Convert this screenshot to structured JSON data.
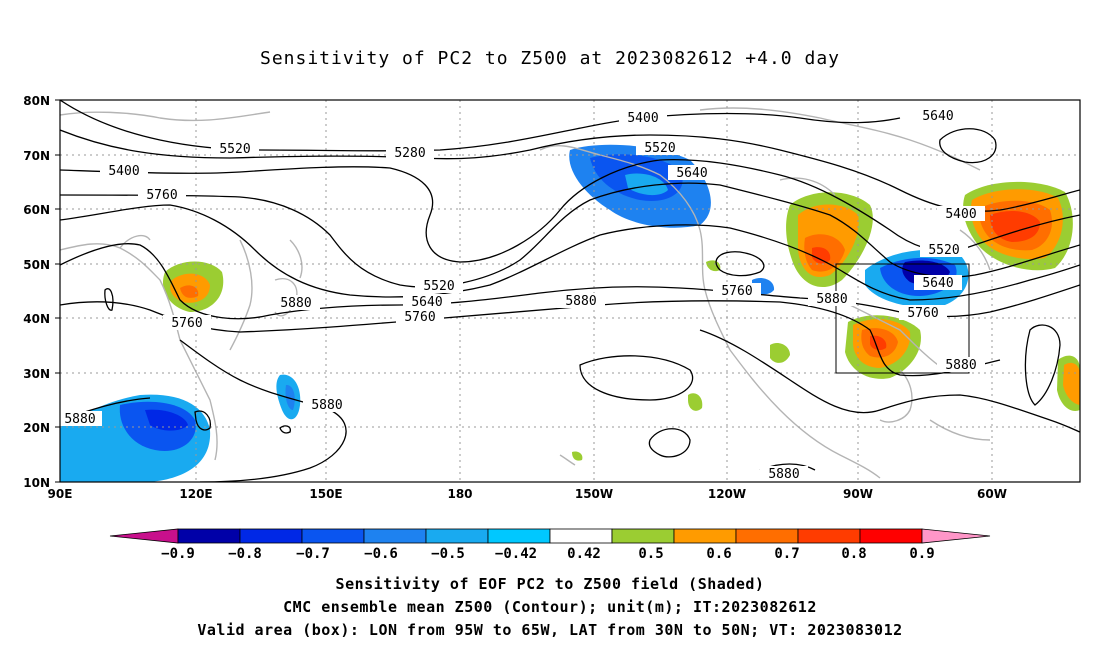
{
  "title": "Sensitivity of PC2 to Z500 at 2023082612 +4.0 day",
  "map": {
    "lat_labels": [
      "80N",
      "70N",
      "60N",
      "50N",
      "40N",
      "30N",
      "20N",
      "10N"
    ],
    "lon_labels": [
      "90E",
      "120E",
      "150E",
      "180",
      "150W",
      "120W",
      "90W",
      "60W"
    ],
    "box": {
      "lon_from": "95W",
      "lon_to": "65W",
      "lat_from": "30N",
      "lat_to": "50N"
    },
    "contour_labels": [
      "5400",
      "5520",
      "5280",
      "5640",
      "5400",
      "5520",
      "5640",
      "5760",
      "5880",
      "5520",
      "5640",
      "5760",
      "5880",
      "5400",
      "5520",
      "5640",
      "5760",
      "5880",
      "5760",
      "5880",
      "5880",
      "5880",
      "5760",
      "5880"
    ]
  },
  "colorbar": {
    "ticks": [
      "−0.9",
      "−0.8",
      "−0.7",
      "−0.6",
      "−0.5",
      "−0.42",
      "0.42",
      "0.5",
      "0.6",
      "0.7",
      "0.8",
      "0.9"
    ],
    "colors": [
      "#c8108c",
      "#0000a8",
      "#0028e6",
      "#0a55f0",
      "#1e82f0",
      "#19aaf0",
      "#00c8ff",
      "#ffffff",
      "#9bcd32",
      "#ff9b00",
      "#ff6e00",
      "#ff3c00",
      "#ff0000",
      "#ff96c8"
    ]
  },
  "caption": {
    "line1": "Sensitivity of EOF PC2 to Z500 field (Shaded)",
    "line2": "CMC ensemble mean Z500 (Contour); unit(m); IT:2023082612",
    "line3": "Valid area (box): LON from 95W to 65W, LAT from 30N to 50N; VT: 2023083012"
  }
}
